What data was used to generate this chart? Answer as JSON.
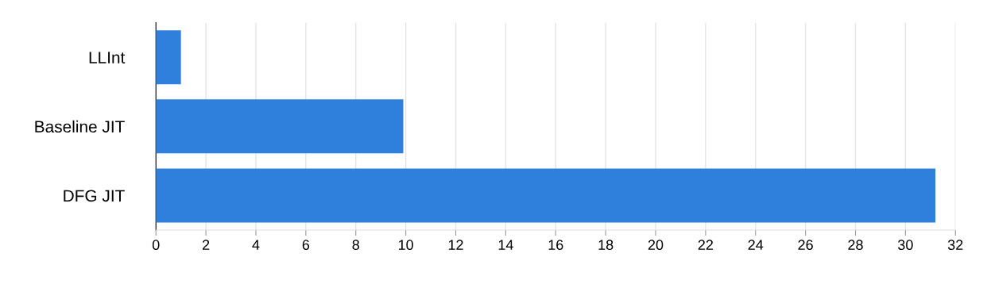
{
  "chart_data": {
    "type": "bar",
    "orientation": "horizontal",
    "categories": [
      "LLInt",
      "Baseline JIT",
      "DFG JIT"
    ],
    "values": [
      1,
      9.9,
      31.2
    ],
    "color": "#2f7fdc",
    "xlim": [
      0,
      32
    ],
    "xticks": [
      0,
      2,
      4,
      6,
      8,
      10,
      12,
      14,
      16,
      18,
      20,
      22,
      24,
      26,
      28,
      30,
      32
    ],
    "grid": "x",
    "legend": false
  }
}
